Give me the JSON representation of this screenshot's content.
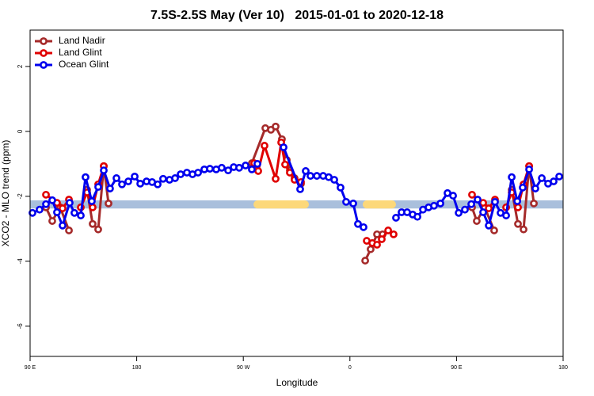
{
  "chart_data": {
    "type": "line",
    "title": "7.5S-2.5S May (Ver 10)   2015-01-01 to 2020-12-18",
    "xlabel": "Longitude",
    "ylabel": "XCO2 - MLO trend (ppm)",
    "xlim": [
      90,
      540
    ],
    "ylim": [
      -6.93,
      3.12
    ],
    "xticks": [
      {
        "value": 90,
        "label": "90 E"
      },
      {
        "value": 180,
        "label": "180"
      },
      {
        "value": 270,
        "label": "90 W"
      },
      {
        "value": 360,
        "label": "0"
      },
      {
        "value": 450,
        "label": "90 E"
      },
      {
        "value": 540,
        "label": "180"
      }
    ],
    "yticks": [
      2,
      0,
      -2,
      -4,
      -6
    ],
    "legend": "top-left",
    "band": {
      "y": -2.25,
      "height": 0.25,
      "color": "#a9bfdc",
      "highlight_color": "#fcd87a",
      "highlights": [
        [
          278.6,
          325.4
        ],
        [
          370.8,
          398.9
        ]
      ]
    },
    "series": [
      {
        "name": "Land Nadir",
        "color": "#a52a2a",
        "x": [
          103.4,
          108.7,
          115.4,
          122.8,
          null,
          138.1,
          142.8,
          147.5,
          152.2,
          156.2,
          null,
          277.2,
          288.6,
          293.3,
          297.3,
          302.6,
          306.7,
          309.3,
          313.3,
          318.7,
          null,
          372.9,
          377.5,
          382.9,
          387.6,
          null,
          463.1,
          467.1,
          473.8,
          481.8,
          null,
          496.6,
          501.9,
          506.6,
          511.3,
          515.3
        ],
        "values": [
          -2.34,
          -2.76,
          -2.34,
          -3.05,
          null,
          -1.8,
          -2.85,
          -3.02,
          -1.07,
          -2.22,
          null,
          -0.98,
          0.1,
          0.05,
          0.15,
          -0.24,
          -0.88,
          -1.2,
          -1.44,
          -1.61,
          null,
          -3.98,
          -3.63,
          -3.17,
          -3.17,
          null,
          -2.34,
          -2.76,
          -2.34,
          -3.05,
          null,
          -1.8,
          -2.85,
          -3.02,
          -1.07,
          -2.22
        ]
      },
      {
        "name": "Land Glint",
        "color": "#e00000",
        "x": [
          103.4,
          112.7,
          117.4,
          122.8,
          null,
          132.8,
          138.1,
          142.8,
          147.5,
          152.2,
          null,
          279.2,
          282.6,
          287.9,
          297.3,
          302.0,
          305.3,
          309.3,
          313.3,
          318.7,
          null,
          374.2,
          378.9,
          382.9,
          386.9,
          392.3,
          396.9,
          null,
          463.1,
          472.5,
          477.2,
          482.5,
          null,
          491.9,
          496.6,
          501.9,
          506.6,
          511.3
        ],
        "values": [
          -1.95,
          -2.2,
          -2.37,
          -2.1,
          null,
          -2.34,
          -1.88,
          -2.34,
          -1.63,
          -1.07,
          null,
          -0.98,
          -1.22,
          -0.44,
          -1.46,
          -0.34,
          -1.02,
          -1.27,
          -1.49,
          -1.56,
          null,
          -3.37,
          -3.44,
          -3.49,
          -3.32,
          -3.05,
          -3.17,
          null,
          -1.95,
          -2.2,
          -2.37,
          -2.1,
          null,
          -2.34,
          -1.88,
          -2.34,
          -1.63,
          -1.07
        ]
      },
      {
        "name": "Ocean Glint",
        "color": "#0000ee",
        "x": [
          92.0,
          98.0,
          103.4,
          108.7,
          112.7,
          117.4,
          123.4,
          127.4,
          132.8,
          136.8,
          142.1,
          147.5,
          152.2,
          157.5,
          162.9,
          167.6,
          172.9,
          178.3,
          183.0,
          188.3,
          193.0,
          197.7,
          202.3,
          207.7,
          212.4,
          217.1,
          222.4,
          227.1,
          231.8,
          237.1,
          241.8,
          247.1,
          251.8,
          257.2,
          261.9,
          266.5,
          271.9,
          277.2,
          281.9,
          null,
          304.0,
          318.0,
          322.7,
          326.7,
          332.1,
          337.4,
          342.1,
          346.8,
          352.1,
          356.8,
          362.8,
          366.8,
          371.5,
          null,
          398.9,
          403.6,
          408.3,
          413.0,
          417.0,
          421.7,
          426.4,
          431.0,
          436.4,
          442.4,
          447.1,
          451.8,
          457.1,
          462.5,
          467.8,
          472.5,
          477.2,
          482.5,
          487.2,
          491.9,
          496.6,
          501.3,
          505.9,
          511.3,
          516.6,
          522.0,
          527.3,
          532.0,
          536.7
        ],
        "values": [
          -2.51,
          -2.41,
          -2.24,
          -2.12,
          -2.49,
          -2.9,
          -2.2,
          -2.51,
          -2.59,
          -1.41,
          -2.15,
          -1.71,
          -1.2,
          -1.76,
          -1.44,
          -1.63,
          -1.54,
          -1.39,
          -1.61,
          -1.54,
          -1.56,
          -1.63,
          -1.46,
          -1.49,
          -1.44,
          -1.32,
          -1.27,
          -1.32,
          -1.27,
          -1.17,
          -1.15,
          -1.17,
          -1.12,
          -1.2,
          -1.1,
          -1.12,
          -1.05,
          -1.17,
          -1.0,
          null,
          -0.49,
          -1.78,
          -1.22,
          -1.37,
          -1.37,
          -1.37,
          -1.41,
          -1.49,
          -1.73,
          -2.17,
          -2.22,
          -2.85,
          -2.95,
          null,
          -2.66,
          -2.49,
          -2.49,
          -2.56,
          -2.63,
          -2.41,
          -2.34,
          -2.29,
          -2.22,
          -1.9,
          -1.98,
          -2.51,
          -2.41,
          -2.24,
          -2.1,
          -2.49,
          -2.9,
          -2.17,
          -2.51,
          -2.59,
          -1.41,
          -2.15,
          -1.73,
          -1.17,
          -1.76,
          -1.44,
          -1.61,
          -1.54,
          -1.39
        ]
      }
    ]
  }
}
